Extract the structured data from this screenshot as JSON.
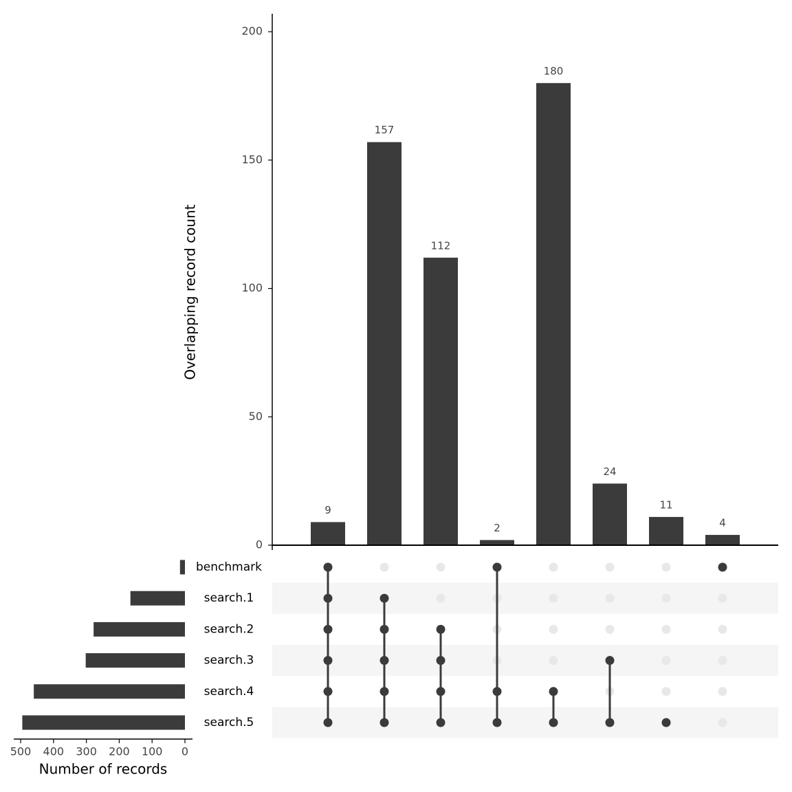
{
  "chart_data": {
    "type": "upset",
    "ylabel": "Overlapping record count",
    "ylim": [
      0,
      207
    ],
    "yticks": [
      0,
      50,
      100,
      150,
      200
    ],
    "values": [
      9,
      157,
      112,
      2,
      180,
      24,
      11,
      4
    ],
    "color": "#3b3b3b",
    "sets": [
      "benchmark",
      "search.1",
      "search.2",
      "search.3",
      "search.4",
      "search.5"
    ],
    "membership": [
      [
        true,
        true,
        true,
        true,
        true,
        true
      ],
      [
        false,
        true,
        true,
        true,
        true,
        true
      ],
      [
        false,
        false,
        true,
        true,
        true,
        true
      ],
      [
        true,
        false,
        false,
        false,
        true,
        true
      ],
      [
        false,
        false,
        false,
        false,
        true,
        true
      ],
      [
        false,
        false,
        false,
        true,
        false,
        true
      ],
      [
        false,
        false,
        false,
        false,
        false,
        true
      ],
      [
        true,
        false,
        false,
        false,
        false,
        false
      ]
    ],
    "set_sizes": [
      15,
      166,
      278,
      302,
      460,
      495
    ],
    "set_size_xlabel": "Number of records",
    "set_size_xlim": [
      -23,
      521
    ],
    "set_size_xticks": [
      0,
      100,
      200,
      300,
      400,
      500
    ],
    "set_size_reverse": true
  }
}
